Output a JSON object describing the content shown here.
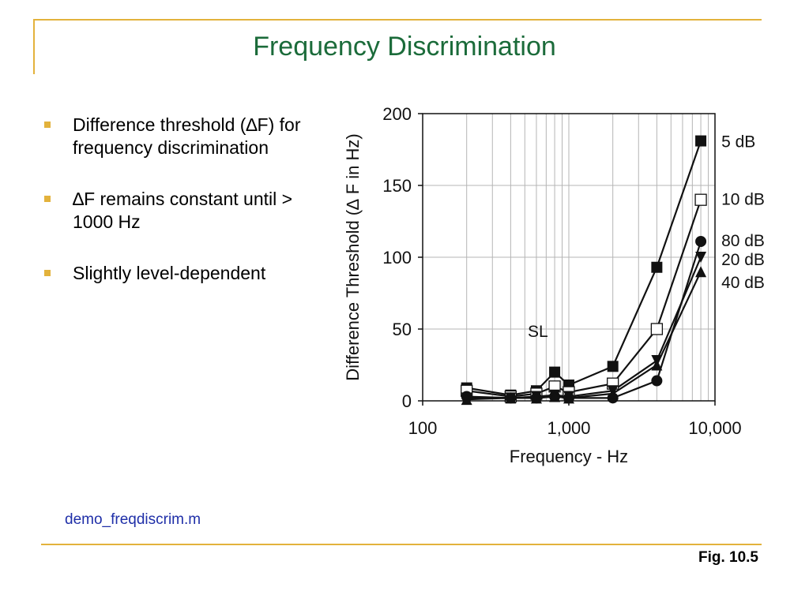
{
  "slide": {
    "title": "Frequency Discrimination",
    "bullets": [
      "Difference threshold (∆F) for frequency discrimination",
      "∆F remains constant until > 1000 Hz",
      "Slightly level-dependent"
    ],
    "link": "demo_freqdiscrim.m",
    "figure_label": "Fig. 10.5"
  },
  "colors": {
    "title": "#1b6b3a",
    "accent": "#e3b23c",
    "link": "#1f2fa8"
  },
  "chart_data": {
    "type": "line",
    "xscale": "log",
    "xlim": [
      100,
      10000
    ],
    "ylim": [
      0,
      200
    ],
    "xticks": [
      100,
      1000,
      10000
    ],
    "xtick_labels": [
      "100",
      "1,000",
      "10,000"
    ],
    "yticks": [
      0,
      50,
      100,
      150,
      200
    ],
    "ytick_labels": [
      "0",
      "50",
      "100",
      "150",
      "200"
    ],
    "xlabel": "Frequency - Hz",
    "ylabel": "Difference Threshold (∆ F in Hz)",
    "grid": true,
    "legend_title": "SL",
    "x": [
      200,
      400,
      600,
      800,
      1000,
      2000,
      4000,
      8000
    ],
    "series": [
      {
        "name": "5 dB",
        "marker": "filled-square",
        "values": [
          9,
          4,
          7,
          20,
          11,
          24,
          93,
          181
        ]
      },
      {
        "name": "10 dB",
        "marker": "open-square",
        "values": [
          7,
          3,
          5,
          10,
          6,
          12,
          50,
          140
        ]
      },
      {
        "name": "80 dB",
        "marker": "filled-circle",
        "values": [
          3,
          2,
          2,
          3,
          2,
          2,
          14,
          111
        ]
      },
      {
        "name": "20 dB",
        "marker": "filled-triangle-down",
        "values": [
          2,
          2,
          3,
          4,
          3,
          7,
          28,
          100
        ]
      },
      {
        "name": "40 dB",
        "marker": "filled-triangle-up",
        "values": [
          1,
          2,
          2,
          3,
          2,
          5,
          25,
          90
        ]
      }
    ]
  }
}
